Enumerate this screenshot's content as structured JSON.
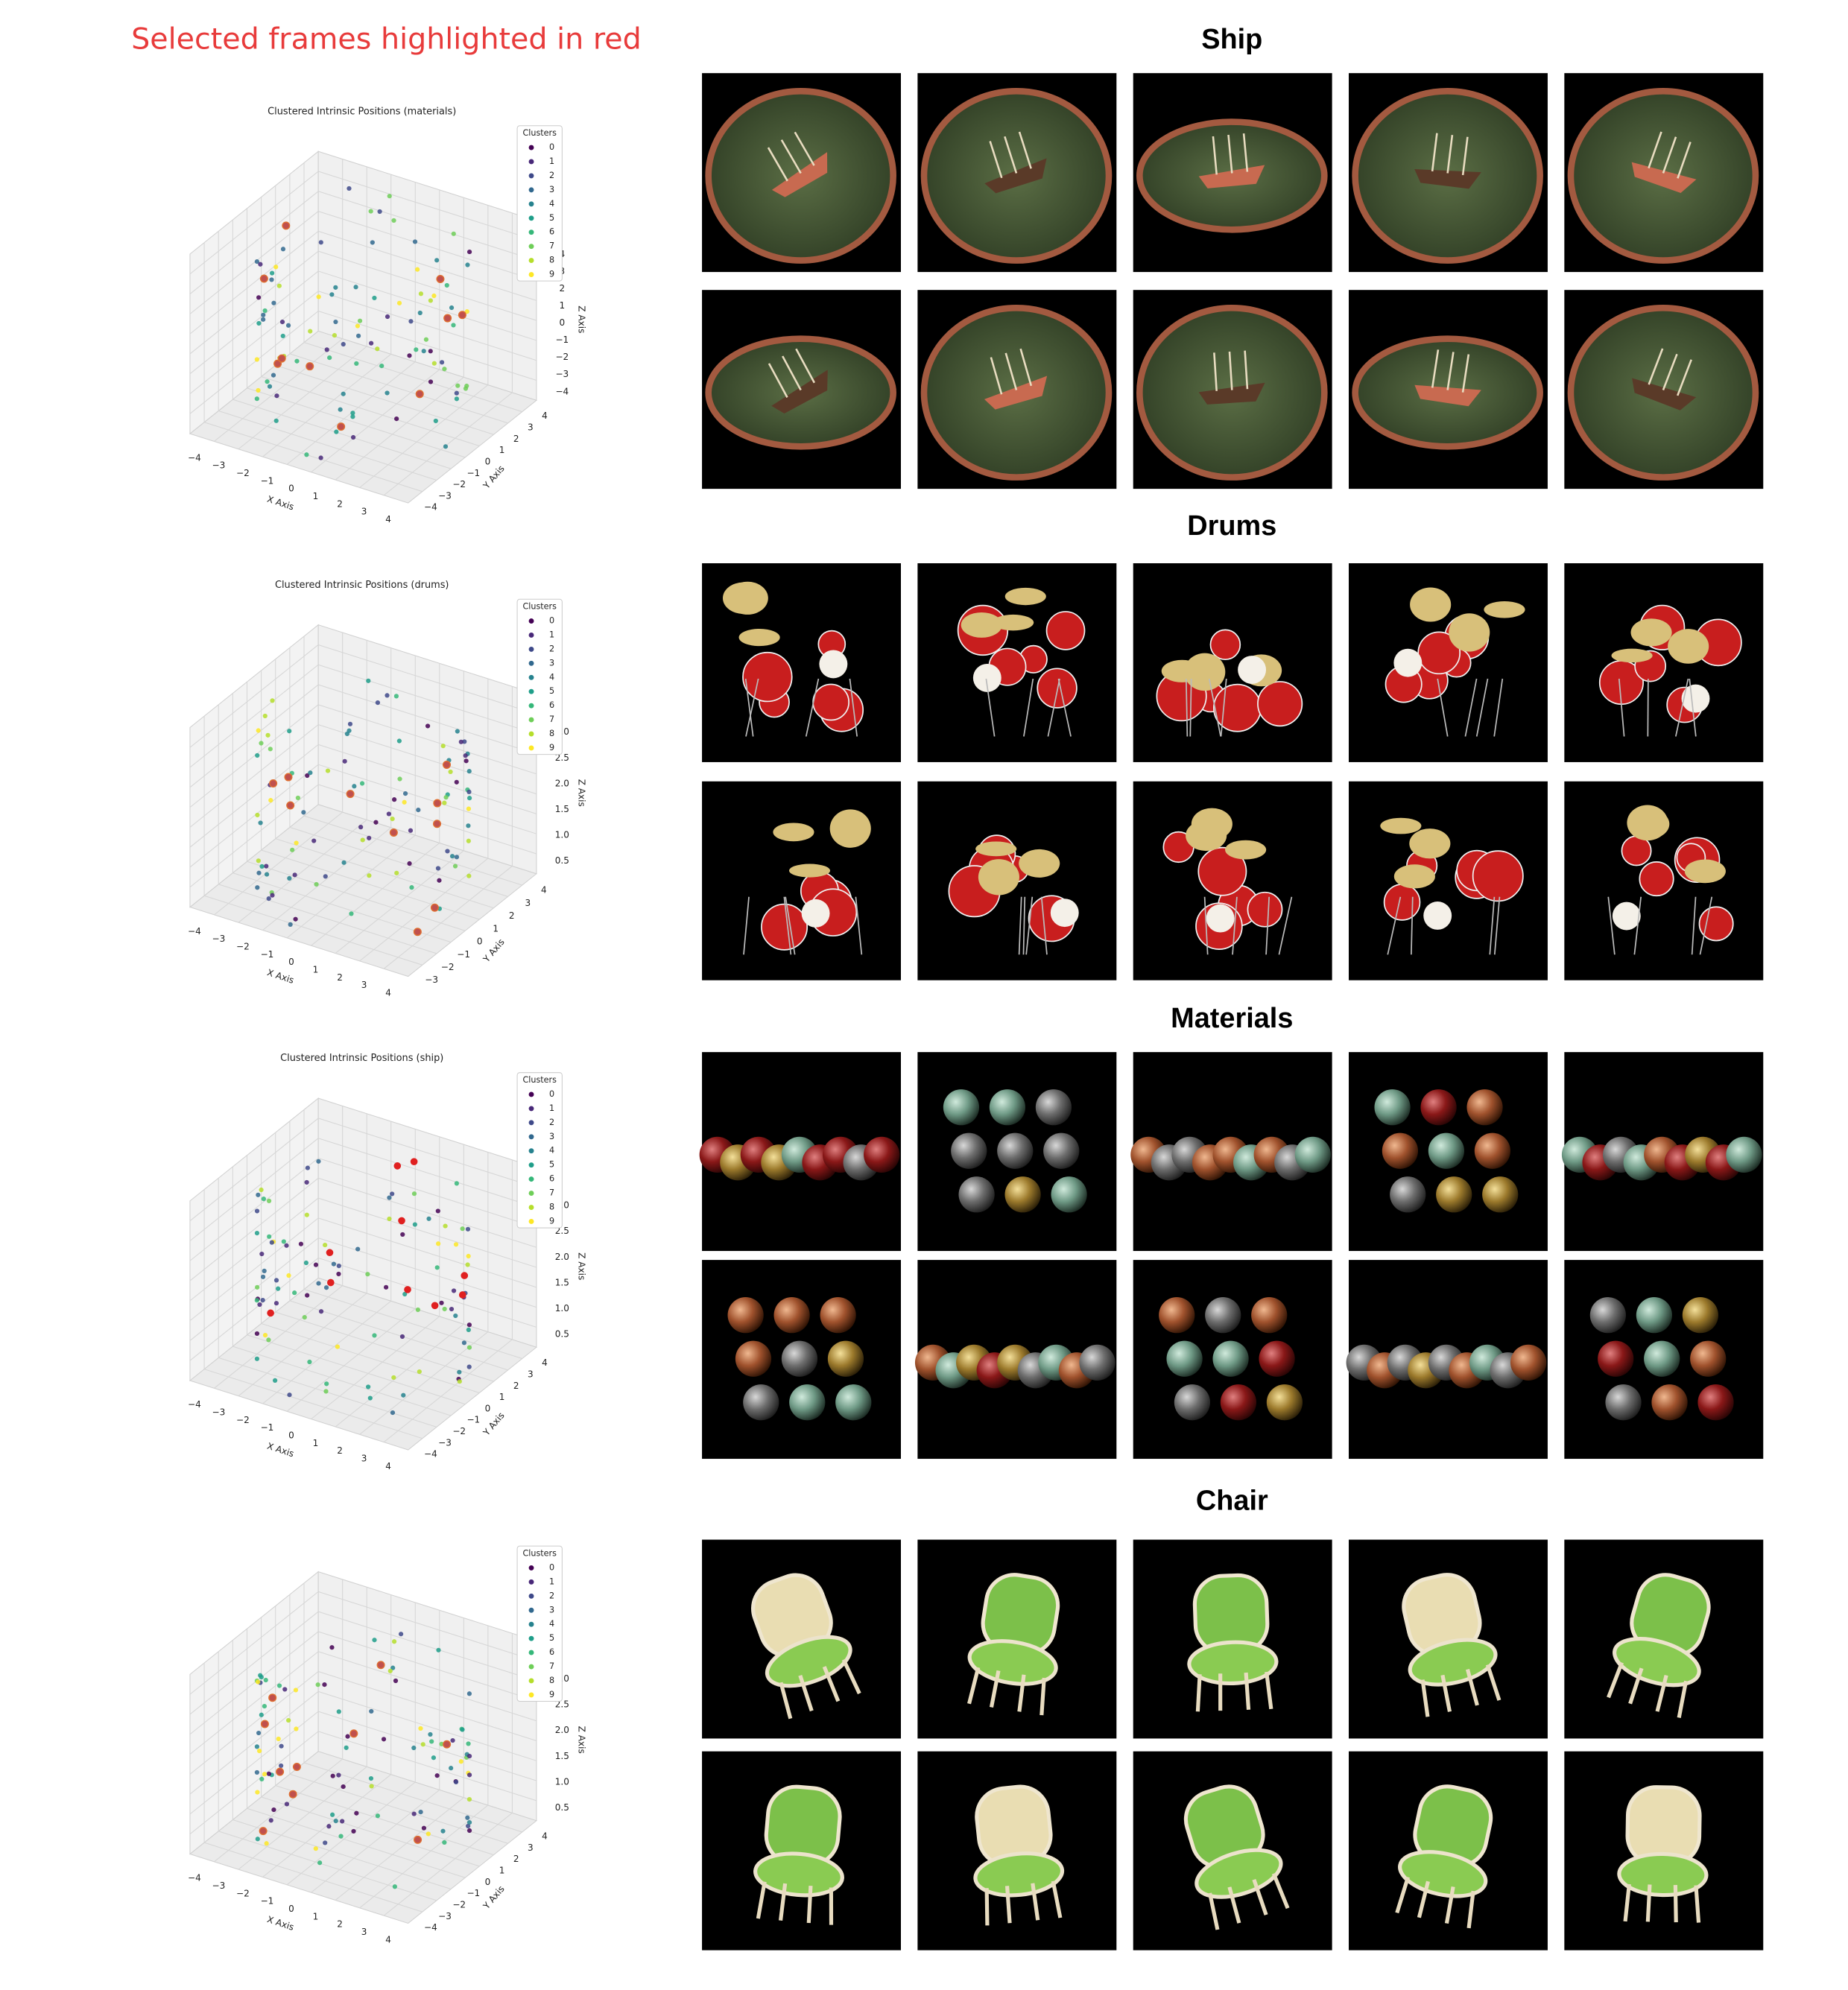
{
  "header": {
    "title": "Selected frames highlighted in red"
  },
  "plots": [
    {
      "title": "Clustered Intrinsic Positions (materials)",
      "legend": {
        "title": "Clusters",
        "entries": [
          "0",
          "1",
          "2",
          "3",
          "4",
          "5",
          "6",
          "7",
          "8",
          "9"
        ],
        "colors": [
          "#440154",
          "#482878",
          "#3e4989",
          "#31688e",
          "#26828e",
          "#1f9e89",
          "#35b779",
          "#6ece58",
          "#b5de2b",
          "#fde725"
        ]
      },
      "x_axis": {
        "label": "X Axis",
        "ticks": [
          "−4",
          "−3",
          "−2",
          "−1",
          "0",
          "1",
          "2",
          "3",
          "4"
        ]
      },
      "y_axis": {
        "label": "Y Axis",
        "ticks": [
          "−4",
          "−3",
          "−2",
          "−1",
          "0",
          "1",
          "2",
          "3",
          "4"
        ]
      },
      "z_axis": {
        "label": "Z Axis",
        "ticks": [
          "−4",
          "−3",
          "−2",
          "−1",
          "0",
          "1",
          "2",
          "3",
          "4"
        ]
      }
    },
    {
      "title": "Clustered Intrinsic Positions (drums)",
      "legend": {
        "title": "Clusters",
        "entries": [
          "0",
          "1",
          "2",
          "3",
          "4",
          "5",
          "6",
          "7",
          "8",
          "9"
        ],
        "colors": [
          "#440154",
          "#482878",
          "#3e4989",
          "#31688e",
          "#26828e",
          "#1f9e89",
          "#35b779",
          "#6ece58",
          "#b5de2b",
          "#fde725"
        ]
      },
      "x_axis": {
        "label": "X Axis",
        "ticks": [
          "−4",
          "−3",
          "−2",
          "−1",
          "0",
          "1",
          "2",
          "3",
          "4"
        ]
      },
      "y_axis": {
        "label": "Y Axis",
        "ticks": [
          "−3",
          "−2",
          "−1",
          "0",
          "1",
          "2",
          "3",
          "4"
        ]
      },
      "z_axis": {
        "label": "Z Axis",
        "ticks": [
          "0.5",
          "1.0",
          "1.5",
          "2.0",
          "2.5",
          "3.0"
        ]
      }
    },
    {
      "title": "Clustered Intrinsic Positions (ship)",
      "legend": {
        "title": "Clusters",
        "entries": [
          "0",
          "1",
          "2",
          "3",
          "4",
          "5",
          "6",
          "7",
          "8",
          "9"
        ],
        "colors": [
          "#440154",
          "#482878",
          "#3e4989",
          "#31688e",
          "#26828e",
          "#1f9e89",
          "#35b779",
          "#6ece58",
          "#b5de2b",
          "#fde725"
        ]
      },
      "x_axis": {
        "label": "X Axis",
        "ticks": [
          "−4",
          "−3",
          "−2",
          "−1",
          "0",
          "1",
          "2",
          "3",
          "4"
        ]
      },
      "y_axis": {
        "label": "Y Axis",
        "ticks": [
          "−4",
          "−3",
          "−2",
          "−1",
          "0",
          "1",
          "2",
          "3",
          "4"
        ]
      },
      "z_axis": {
        "label": "Z Axis",
        "ticks": [
          "0.5",
          "1.0",
          "1.5",
          "2.0",
          "2.5",
          "3.0"
        ]
      }
    },
    {
      "legend": {
        "title": "Clusters",
        "entries": [
          "0",
          "1",
          "2",
          "3",
          "4",
          "5",
          "6",
          "7",
          "8",
          "9"
        ],
        "colors": [
          "#440154",
          "#482878",
          "#3e4989",
          "#31688e",
          "#26828e",
          "#1f9e89",
          "#35b779",
          "#6ece58",
          "#b5de2b",
          "#fde725"
        ]
      },
      "x_axis": {
        "label": "X Axis",
        "ticks": [
          "−4",
          "−3",
          "−2",
          "−1",
          "0",
          "1",
          "2",
          "3",
          "4"
        ]
      },
      "y_axis": {
        "label": "Y Axis",
        "ticks": [
          "−4",
          "−3",
          "−2",
          "−1",
          "0",
          "1",
          "2",
          "3",
          "4"
        ]
      },
      "z_axis": {
        "label": "Z Axis",
        "ticks": [
          "0.5",
          "1.0",
          "1.5",
          "2.0",
          "2.5",
          "3.0"
        ]
      }
    }
  ],
  "panels": [
    {
      "title": "Ship"
    },
    {
      "title": "Drums"
    },
    {
      "title": "Materials"
    },
    {
      "title": "Chair"
    }
  ]
}
